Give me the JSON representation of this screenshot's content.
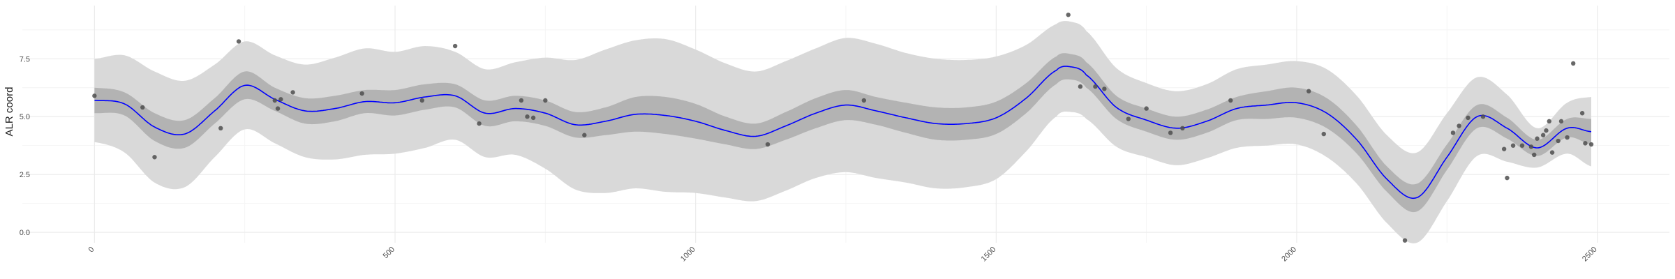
{
  "chart_data": {
    "type": "line",
    "title": "",
    "xlabel": "",
    "ylabel": "ALR coord",
    "xlim": [
      -120,
      2620
    ],
    "ylim": [
      -0.45,
      9.8
    ],
    "x_ticks": [
      0,
      500,
      1000,
      1500,
      2000,
      2500
    ],
    "x_tick_labels": [
      "0",
      "500",
      "1000",
      "1500",
      "2000",
      "2500"
    ],
    "y_ticks": [
      0.0,
      2.5,
      5.0,
      7.5
    ],
    "y_tick_labels": [
      "0.0",
      "2.5",
      "5.0",
      "7.5"
    ],
    "grid": true,
    "colors": {
      "mean_line": "#0000ff",
      "inner_band": "#b3b3b3",
      "outer_band": "#d9d9d9",
      "points": "#4d4d4d",
      "grid_major": "#ebebeb",
      "grid_minor": "#f4f4f4"
    },
    "mean_curve": {
      "x": [
        0,
        50,
        100,
        150,
        200,
        250,
        300,
        350,
        400,
        450,
        500,
        550,
        600,
        650,
        700,
        750,
        800,
        850,
        900,
        950,
        1000,
        1050,
        1100,
        1150,
        1200,
        1250,
        1300,
        1350,
        1400,
        1450,
        1500,
        1550,
        1600,
        1625,
        1650,
        1700,
        1750,
        1800,
        1850,
        1900,
        1950,
        2000,
        2050,
        2100,
        2150,
        2200,
        2250,
        2300,
        2350,
        2400,
        2450,
        2490
      ],
      "y": [
        5.7,
        5.55,
        4.55,
        4.25,
        5.25,
        6.35,
        5.75,
        5.25,
        5.35,
        5.65,
        5.6,
        5.85,
        5.9,
        5.15,
        5.35,
        5.15,
        4.65,
        4.8,
        5.1,
        5.05,
        4.8,
        4.4,
        4.15,
        4.6,
        5.15,
        5.5,
        5.25,
        4.95,
        4.7,
        4.7,
        4.95,
        5.8,
        7.0,
        7.15,
        6.8,
        5.4,
        4.85,
        4.5,
        4.8,
        5.35,
        5.5,
        5.6,
        5.15,
        4.0,
        2.3,
        1.5,
        3.25,
        5.0,
        4.5,
        3.65,
        4.5,
        4.35
      ],
      "inner_band_half_width": [
        0.55,
        0.5,
        0.6,
        0.6,
        0.55,
        0.6,
        0.5,
        0.55,
        0.55,
        0.5,
        0.55,
        0.55,
        0.5,
        0.55,
        0.55,
        0.55,
        0.55,
        0.6,
        0.75,
        0.8,
        0.75,
        0.6,
        0.55,
        0.6,
        0.65,
        0.65,
        0.6,
        0.65,
        0.7,
        0.7,
        0.7,
        0.65,
        0.6,
        0.55,
        0.55,
        0.5,
        0.5,
        0.5,
        0.5,
        0.5,
        0.6,
        0.65,
        0.65,
        0.6,
        0.55,
        0.6,
        0.55,
        0.5,
        0.45,
        0.35,
        0.4,
        0.55
      ],
      "outer_band_half_width": [
        1.8,
        2.1,
        2.4,
        2.3,
        2.0,
        1.9,
        1.9,
        2.0,
        2.2,
        2.3,
        2.2,
        2.2,
        1.9,
        1.9,
        2.0,
        2.4,
        2.8,
        3.1,
        3.2,
        3.3,
        3.1,
        2.9,
        2.8,
        2.8,
        2.8,
        2.9,
        2.9,
        2.8,
        2.8,
        2.75,
        2.65,
        2.3,
        2.0,
        1.95,
        1.9,
        1.7,
        1.6,
        1.6,
        1.6,
        1.7,
        1.75,
        1.8,
        1.9,
        1.9,
        1.9,
        1.95,
        1.9,
        1.7,
        1.45,
        0.85,
        1.1,
        1.5
      ]
    },
    "points": {
      "x": [
        0,
        80,
        100,
        210,
        240,
        300,
        305,
        310,
        330,
        445,
        545,
        600,
        640,
        710,
        720,
        730,
        750,
        815,
        1120,
        1280,
        1620,
        1640,
        1665,
        1680,
        1720,
        1750,
        1790,
        1810,
        1890,
        2020,
        2045,
        2180,
        2260,
        2270,
        2285,
        2310,
        2345,
        2350,
        2360,
        2375,
        2390,
        2395,
        2400,
        2410,
        2415,
        2420,
        2425,
        2435,
        2440,
        2450,
        2460,
        2475,
        2480,
        2490
      ],
      "y": [
        5.9,
        5.4,
        3.25,
        4.5,
        8.25,
        5.7,
        5.35,
        5.75,
        6.05,
        6.0,
        5.7,
        8.05,
        4.7,
        5.7,
        5.0,
        4.95,
        5.7,
        4.2,
        3.8,
        5.7,
        9.4,
        6.3,
        6.3,
        6.2,
        4.9,
        5.35,
        4.3,
        4.5,
        5.7,
        6.1,
        4.25,
        -0.35,
        4.3,
        4.6,
        4.95,
        5.0,
        3.6,
        2.35,
        3.75,
        3.75,
        3.7,
        3.35,
        4.05,
        4.2,
        4.4,
        4.8,
        3.45,
        3.95,
        4.8,
        4.1,
        7.3,
        5.15,
        3.85,
        3.8
      ]
    }
  }
}
